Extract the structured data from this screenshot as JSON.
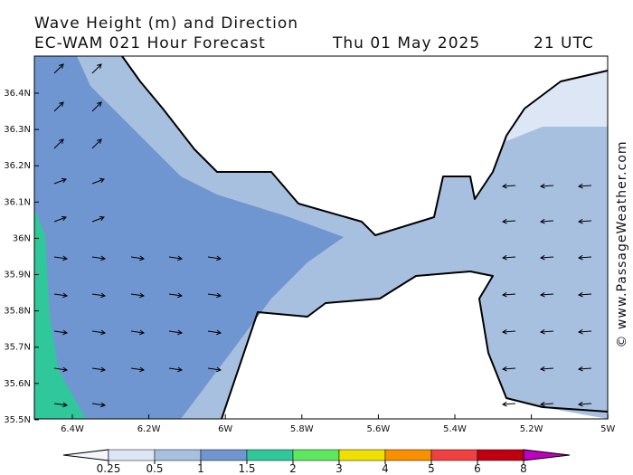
{
  "header": {
    "title": "Wave Height (m) and Direction",
    "model": "EC-WAM 021 Hour Forecast",
    "date": "Thu 01 May 2025",
    "time": "21 UTC"
  },
  "map": {
    "lat_labels": [
      "36.4N",
      "36.3N",
      "36.2N",
      "36.1N",
      "36N",
      "35.9N",
      "35.8N",
      "35.7N",
      "35.6N",
      "35.5N"
    ],
    "lon_labels": [
      "6.4W",
      "6.2W",
      "6W",
      "5.8W",
      "5.6W",
      "5.4W",
      "5.2W",
      "5W"
    ]
  },
  "legend": {
    "labels": [
      "0.25",
      "0.5",
      "1",
      "1.5",
      "2",
      "3",
      "4",
      "5",
      "6",
      "8"
    ],
    "colors": [
      "#f4f6fc",
      "#dde6f4",
      "#a8c0e0",
      "#6f96d0",
      "#30c89a",
      "#5ee860",
      "#f0e000",
      "#f89000",
      "#f04040",
      "#c00010",
      "#c000c0"
    ]
  },
  "credit": "© www.PassageWeather.com"
}
